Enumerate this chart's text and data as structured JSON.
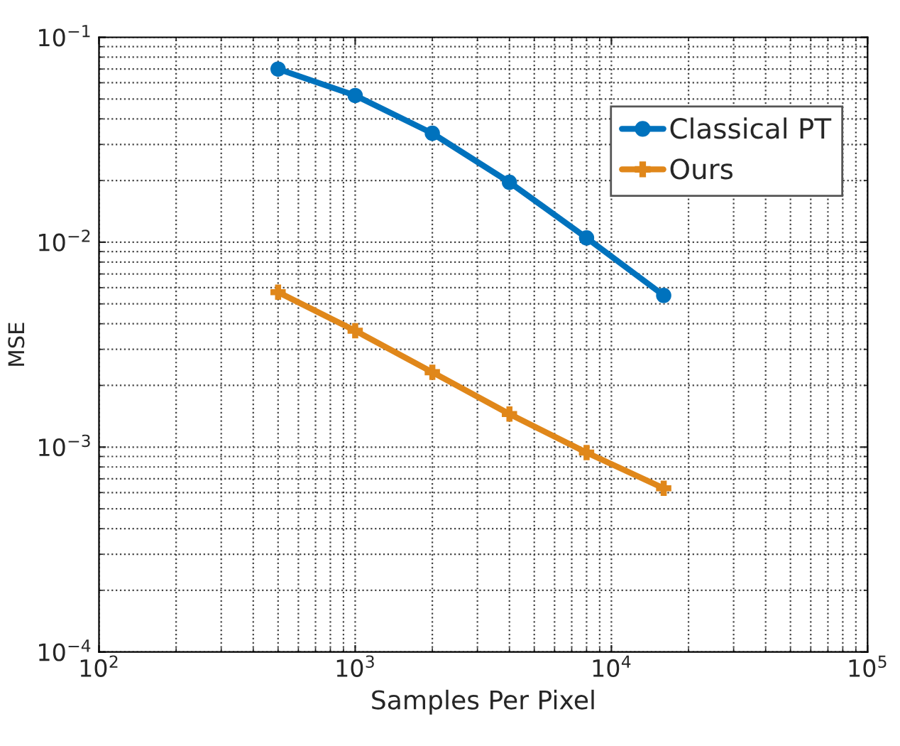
{
  "chart_data": {
    "type": "line",
    "xlabel": "Samples Per Pixel",
    "ylabel": "MSE",
    "log": "xy",
    "grid": true,
    "legend": "top right",
    "line_style": "solid",
    "x": [
      500,
      1000,
      2000,
      4000,
      8000,
      16000
    ],
    "xlim": [
      100,
      100000
    ],
    "ylim": [
      0.0001,
      0.1
    ],
    "xticks": [
      {
        "value": 100,
        "label": "10$^{2}$"
      },
      {
        "value": 1000,
        "label": "10$^{3}$"
      },
      {
        "value": 10000,
        "label": "10$^{4}$"
      },
      {
        "value": 100000,
        "label": "10$^{5}$"
      }
    ],
    "yticks": [
      {
        "value": 0.0001,
        "label": "10$^{−4}$"
      },
      {
        "value": 0.001,
        "label": "10$^{−3}$"
      },
      {
        "value": 0.01,
        "label": "10$^{−2}$"
      },
      {
        "value": 0.1,
        "label": "10$^{−1}$"
      }
    ],
    "series": [
      {
        "name": "Classical PT",
        "color": "#0072bd",
        "marker": "circle",
        "values": [
          0.07,
          0.052,
          0.034,
          0.0196,
          0.0105,
          0.0055
        ]
      },
      {
        "name": "Ours",
        "color": "#e0871a",
        "marker": "cross",
        "values": [
          0.0057,
          0.0037,
          0.00232,
          0.00145,
          0.00094,
          0.00063
        ]
      }
    ]
  }
}
